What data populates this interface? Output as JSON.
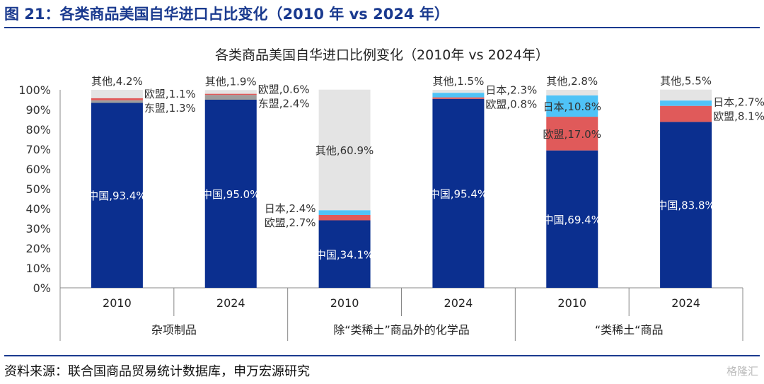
{
  "figure_title": "图 21：各类商品美国自华进口占比变化（2010 年 vs 2024 年）",
  "source_note": "资料来源：联合国商品贸易统计数据库，申万宏源研究",
  "watermark": "格隆汇",
  "colors": {
    "china": "#0b2f8f",
    "eu": "#e05a5a",
    "japan": "#4fc3f7",
    "asean": "#9e9e9e",
    "other": "#e4e4e4",
    "title_blue": "#1a3a8f"
  },
  "chart_data": {
    "type": "bar",
    "stacked": true,
    "title": "各类商品美国自华进口比例变化（2010年 vs 2024年）",
    "ylim": [
      0,
      100
    ],
    "yticks": [
      "0%",
      "10%",
      "20%",
      "30%",
      "40%",
      "50%",
      "60%",
      "70%",
      "80%",
      "90%",
      "100%"
    ],
    "groups": [
      {
        "name": "杂项制品",
        "bars": [
          {
            "category": "2010",
            "segments": [
              {
                "name": "中国",
                "value": 93.4,
                "label": "中国,93.4%"
              },
              {
                "name": "东盟",
                "value": 1.3,
                "label": "东盟,1.3%"
              },
              {
                "name": "欧盟",
                "value": 1.1,
                "label": "欧盟,1.1%"
              },
              {
                "name": "其他",
                "value": 4.2,
                "label": "其他,4.2%"
              }
            ]
          },
          {
            "category": "2024",
            "segments": [
              {
                "name": "中国",
                "value": 95.0,
                "label": "中国,95.0%"
              },
              {
                "name": "东盟",
                "value": 2.4,
                "label": "东盟,2.4%"
              },
              {
                "name": "欧盟",
                "value": 0.6,
                "label": "欧盟,0.6%"
              },
              {
                "name": "其他",
                "value": 1.9,
                "label": "其他,1.9%"
              }
            ]
          }
        ]
      },
      {
        "name": "除“类稀土”商品外的化学品",
        "bars": [
          {
            "category": "2010",
            "segments": [
              {
                "name": "中国",
                "value": 34.1,
                "label": "中国,34.1%"
              },
              {
                "name": "欧盟",
                "value": 2.7,
                "label": "欧盟,2.7%"
              },
              {
                "name": "日本",
                "value": 2.4,
                "label": "日本,2.4%"
              },
              {
                "name": "其他",
                "value": 60.9,
                "label": "其他,60.9%"
              }
            ]
          },
          {
            "category": "2024",
            "segments": [
              {
                "name": "中国",
                "value": 95.4,
                "label": "中国,95.4%"
              },
              {
                "name": "欧盟",
                "value": 0.8,
                "label": "欧盟,0.8%"
              },
              {
                "name": "日本",
                "value": 2.3,
                "label": "日本,2.3%"
              },
              {
                "name": "其他",
                "value": 1.5,
                "label": "其他,1.5%"
              }
            ]
          }
        ]
      },
      {
        "name": "“类稀土“商品",
        "bars": [
          {
            "category": "2010",
            "segments": [
              {
                "name": "中国",
                "value": 69.4,
                "label": "中国,69.4%"
              },
              {
                "name": "欧盟",
                "value": 17.0,
                "label": "欧盟,17.0%"
              },
              {
                "name": "日本",
                "value": 10.8,
                "label": "日本,10.8%"
              },
              {
                "name": "其他",
                "value": 2.8,
                "label": "其他,2.8%"
              }
            ]
          },
          {
            "category": "2024",
            "segments": [
              {
                "name": "中国",
                "value": 83.8,
                "label": "中国,83.8%"
              },
              {
                "name": "欧盟",
                "value": 8.1,
                "label": "欧盟,8.1%"
              },
              {
                "name": "日本",
                "value": 2.7,
                "label": "日本,2.7%"
              },
              {
                "name": "其他",
                "value": 5.5,
                "label": "其他,5.5%"
              }
            ]
          }
        ]
      }
    ]
  }
}
